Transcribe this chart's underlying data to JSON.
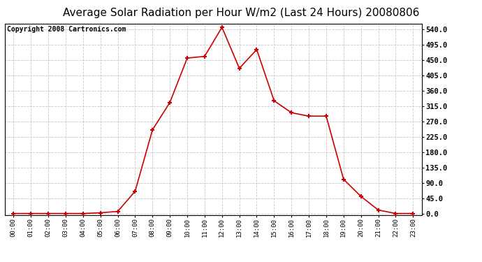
{
  "title": "Average Solar Radiation per Hour W/m2 (Last 24 Hours) 20080806",
  "copyright_text": "Copyright 2008 Cartronics.com",
  "x_labels": [
    "00:00",
    "01:00",
    "02:00",
    "03:00",
    "04:00",
    "05:00",
    "06:00",
    "07:00",
    "08:00",
    "09:00",
    "10:00",
    "11:00",
    "12:00",
    "13:00",
    "14:00",
    "15:00",
    "16:00",
    "17:00",
    "18:00",
    "19:00",
    "20:00",
    "21:00",
    "22:00",
    "23:00"
  ],
  "y_values": [
    0.0,
    0.0,
    0.0,
    0.0,
    0.0,
    2.0,
    6.0,
    65.0,
    245.0,
    325.0,
    455.0,
    460.0,
    545.0,
    425.0,
    480.0,
    330.0,
    295.0,
    285.0,
    285.0,
    100.0,
    50.0,
    10.0,
    0.0,
    0.0
  ],
  "line_color": "#cc0000",
  "marker_color": "#cc0000",
  "bg_color": "#ffffff",
  "grid_color": "#c8c8c8",
  "title_fontsize": 11,
  "copyright_fontsize": 7,
  "ytick_values": [
    0.0,
    45.0,
    90.0,
    135.0,
    180.0,
    225.0,
    270.0,
    315.0,
    360.0,
    405.0,
    450.0,
    495.0,
    540.0
  ],
  "ymax": 556.0,
  "ymin": -4.0
}
